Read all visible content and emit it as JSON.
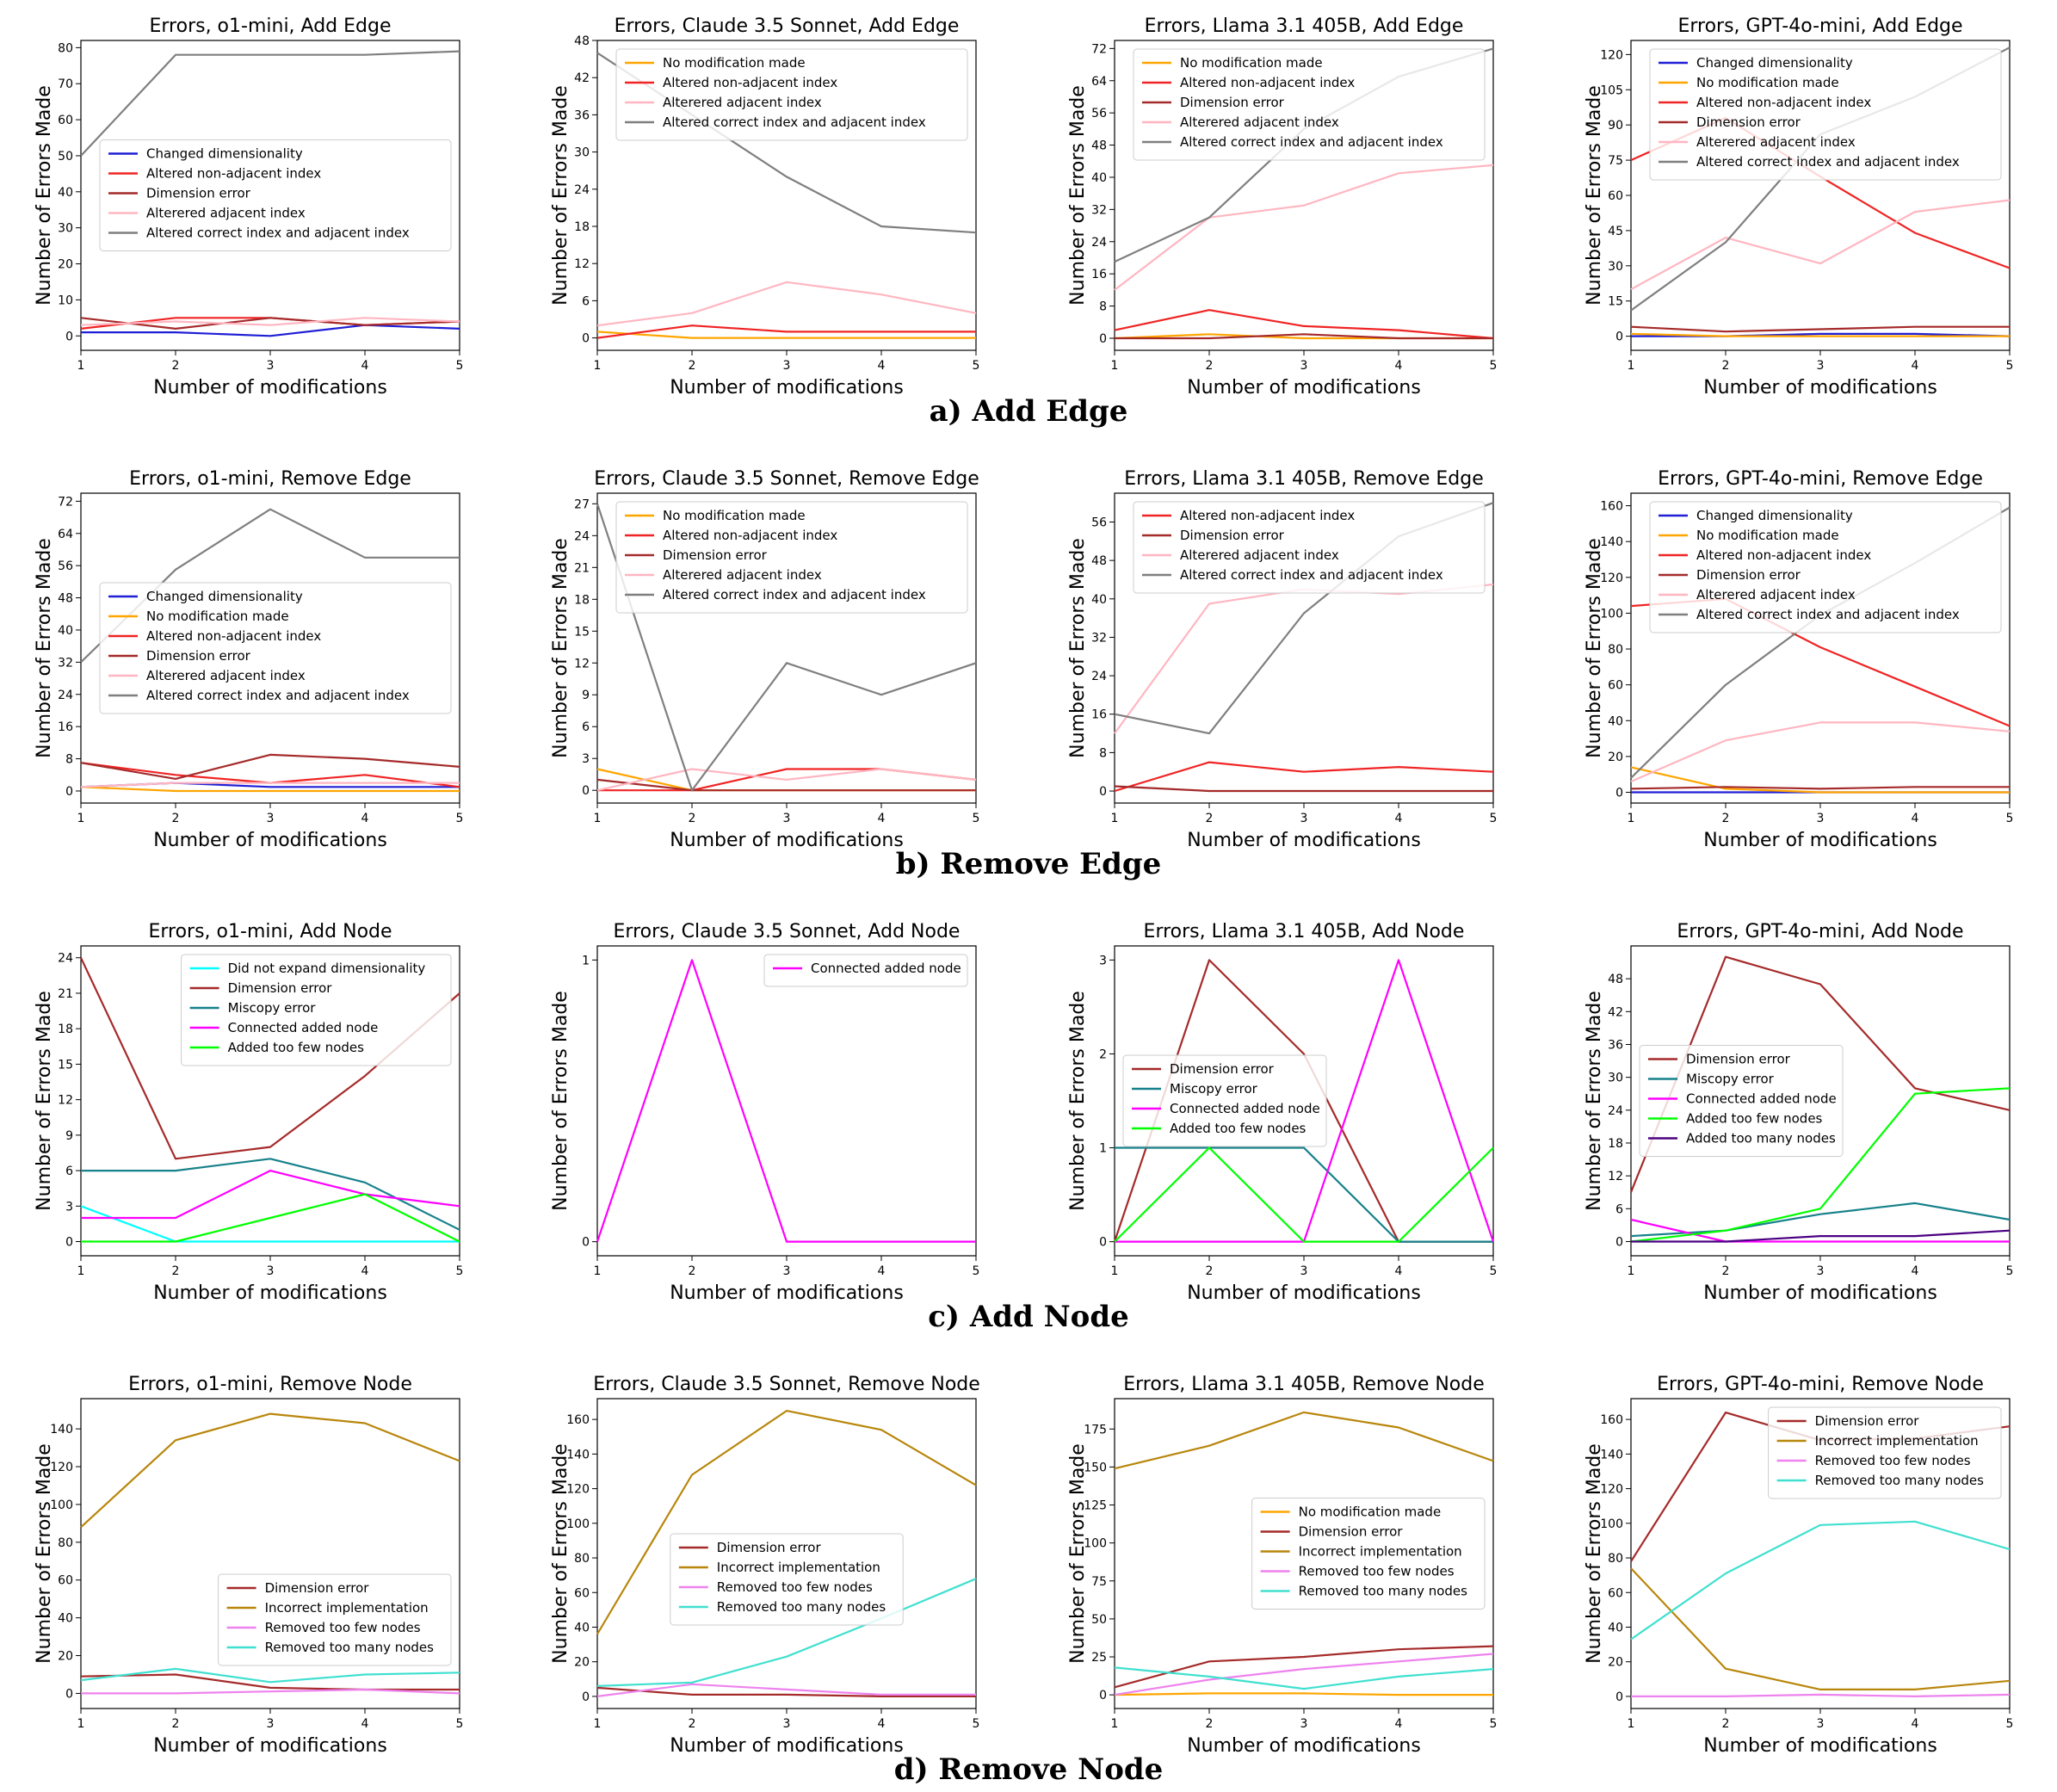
{
  "colors": {
    "Changed dimensionality": "#1f1fd6",
    "No modification made": "#ffa500",
    "Altered non-adjacent index": "#f02424",
    "Dimension error": "#a52a2a",
    "Alterered adjacent index": "#ffb6c1",
    "Altered correct index and adjacent index": "#7f7f7f",
    "Did not expand dimensionality": "#00ffff",
    "Miscopy error": "#16818a",
    "Connected added node": "#ff00ff",
    "Added too few nodes": "#00ff00",
    "Added too many nodes": "#4b0082",
    "Incorrect implementation": "#b8860b",
    "Removed too few nodes": "#ee82ee",
    "Removed too many nodes": "#40e0d0"
  },
  "xlabel": "Number of modifications",
  "ylabel": "Number of Errors Made",
  "captions": [
    "a) Add Edge",
    "b) Remove Edge",
    "c) Add Node",
    "d) Remove Node"
  ],
  "chart_data": [
    {
      "type": "line",
      "title": "Errors, o1-mini, Add Edge",
      "x": [
        1,
        2,
        3,
        4,
        5
      ],
      "ylim": [
        -4,
        82
      ],
      "yticks": [
        0,
        10,
        20,
        30,
        40,
        50,
        60,
        70,
        80
      ],
      "legend": "center-right",
      "series": [
        {
          "name": "Changed dimensionality",
          "values": [
            1,
            1,
            0,
            3,
            2
          ]
        },
        {
          "name": "Altered non-adjacent index",
          "values": [
            2,
            5,
            5,
            3,
            4
          ]
        },
        {
          "name": "Dimension error",
          "values": [
            5,
            2,
            5,
            3,
            4
          ]
        },
        {
          "name": "Alterered adjacent index",
          "values": [
            3,
            4,
            3,
            5,
            4
          ]
        },
        {
          "name": "Altered correct index and adjacent index",
          "values": [
            50,
            78,
            78,
            78,
            79
          ]
        }
      ]
    },
    {
      "type": "line",
      "title": "Errors, Claude 3.5 Sonnet, Add Edge",
      "x": [
        1,
        2,
        3,
        4,
        5
      ],
      "ylim": [
        -2,
        48
      ],
      "yticks": [
        0,
        6,
        12,
        18,
        24,
        30,
        36,
        42,
        48
      ],
      "legend": "top-right",
      "series": [
        {
          "name": "No modification made",
          "values": [
            1,
            0,
            0,
            0,
            0
          ]
        },
        {
          "name": "Altered non-adjacent index",
          "values": [
            0,
            2,
            1,
            1,
            1
          ]
        },
        {
          "name": "Alterered adjacent index",
          "values": [
            2,
            4,
            9,
            7,
            4
          ]
        },
        {
          "name": "Altered correct index and adjacent index",
          "values": [
            46,
            36,
            26,
            18,
            17
          ]
        }
      ]
    },
    {
      "type": "line",
      "title": "Errors, Llama 3.1 405B, Add Edge",
      "x": [
        1,
        2,
        3,
        4,
        5
      ],
      "ylim": [
        -3,
        74
      ],
      "yticks": [
        0,
        8,
        16,
        24,
        32,
        40,
        48,
        56,
        64,
        72
      ],
      "legend": "top-right",
      "series": [
        {
          "name": "No modification made",
          "values": [
            0,
            1,
            0,
            0,
            0
          ]
        },
        {
          "name": "Altered non-adjacent index",
          "values": [
            2,
            7,
            3,
            2,
            0
          ]
        },
        {
          "name": "Dimension error",
          "values": [
            0,
            0,
            1,
            0,
            0
          ]
        },
        {
          "name": "Alterered adjacent index",
          "values": [
            12,
            30,
            33,
            41,
            43
          ]
        },
        {
          "name": "Altered correct index and adjacent index",
          "values": [
            19,
            30,
            52,
            65,
            72
          ]
        }
      ]
    },
    {
      "type": "line",
      "title": "Errors, GPT-4o-mini, Add Edge",
      "x": [
        1,
        2,
        3,
        4,
        5
      ],
      "ylim": [
        -6,
        126
      ],
      "yticks": [
        0,
        15,
        30,
        45,
        60,
        75,
        90,
        105,
        120
      ],
      "legend": "top-right",
      "series": [
        {
          "name": "Changed dimensionality",
          "values": [
            0,
            0,
            1,
            1,
            0
          ]
        },
        {
          "name": "No modification made",
          "values": [
            1,
            0,
            0,
            0,
            0
          ]
        },
        {
          "name": "Altered non-adjacent index",
          "values": [
            75,
            93,
            68,
            44,
            29
          ]
        },
        {
          "name": "Dimension error",
          "values": [
            4,
            2,
            3,
            4,
            4
          ]
        },
        {
          "name": "Alterered adjacent index",
          "values": [
            20,
            42,
            31,
            53,
            58
          ]
        },
        {
          "name": "Altered correct index and adjacent index",
          "values": [
            11,
            40,
            86,
            102,
            123
          ]
        }
      ]
    },
    {
      "type": "line",
      "title": "Errors, o1-mini, Remove Edge",
      "x": [
        1,
        2,
        3,
        4,
        5
      ],
      "ylim": [
        -3,
        74
      ],
      "yticks": [
        0,
        8,
        16,
        24,
        32,
        40,
        48,
        56,
        64,
        72
      ],
      "legend": "center-right",
      "series": [
        {
          "name": "Changed dimensionality",
          "values": [
            1,
            2,
            1,
            1,
            1
          ]
        },
        {
          "name": "No modification made",
          "values": [
            1,
            0,
            0,
            0,
            0
          ]
        },
        {
          "name": "Altered non-adjacent index",
          "values": [
            7,
            4,
            2,
            4,
            1
          ]
        },
        {
          "name": "Dimension error",
          "values": [
            7,
            3,
            9,
            8,
            6
          ]
        },
        {
          "name": "Alterered adjacent index",
          "values": [
            1,
            2,
            2,
            2,
            2
          ]
        },
        {
          "name": "Altered correct index and adjacent index",
          "values": [
            32,
            55,
            70,
            58,
            58
          ]
        }
      ]
    },
    {
      "type": "line",
      "title": "Errors, Claude 3.5 Sonnet, Remove Edge",
      "x": [
        1,
        2,
        3,
        4,
        5
      ],
      "ylim": [
        -1.2,
        28
      ],
      "yticks": [
        0,
        3,
        6,
        9,
        12,
        15,
        18,
        21,
        24,
        27
      ],
      "legend": "top-right",
      "series": [
        {
          "name": "No modification made",
          "values": [
            2,
            0,
            0,
            0,
            0
          ]
        },
        {
          "name": "Altered non-adjacent index",
          "values": [
            0,
            0,
            2,
            2,
            1
          ]
        },
        {
          "name": "Dimension error",
          "values": [
            1,
            0,
            0,
            0,
            0
          ]
        },
        {
          "name": "Alterered adjacent index",
          "values": [
            0,
            2,
            1,
            2,
            1
          ]
        },
        {
          "name": "Altered correct index and adjacent index",
          "values": [
            27,
            0,
            12,
            9,
            12
          ]
        }
      ]
    },
    {
      "type": "line",
      "title": "Errors, Llama 3.1 405B, Remove Edge",
      "x": [
        1,
        2,
        3,
        4,
        5
      ],
      "ylim": [
        -2.5,
        62
      ],
      "yticks": [
        0,
        8,
        16,
        24,
        32,
        40,
        48,
        56
      ],
      "legend": "top-right",
      "series": [
        {
          "name": "Altered non-adjacent index",
          "values": [
            0,
            6,
            4,
            5,
            4
          ]
        },
        {
          "name": "Dimension error",
          "values": [
            1,
            0,
            0,
            0,
            0
          ]
        },
        {
          "name": "Alterered adjacent index",
          "values": [
            12,
            39,
            42,
            41,
            43
          ]
        },
        {
          "name": "Altered correct index and adjacent index",
          "values": [
            16,
            12,
            37,
            53,
            60
          ]
        }
      ]
    },
    {
      "type": "line",
      "title": "Errors, GPT-4o-mini, Remove Edge",
      "x": [
        1,
        2,
        3,
        4,
        5
      ],
      "ylim": [
        -6,
        167
      ],
      "yticks": [
        0,
        20,
        40,
        60,
        80,
        100,
        120,
        140,
        160
      ],
      "legend": "top-right",
      "series": [
        {
          "name": "Changed dimensionality",
          "values": [
            0,
            0,
            0,
            0,
            0
          ]
        },
        {
          "name": "No modification made",
          "values": [
            14,
            2,
            0,
            0,
            0
          ]
        },
        {
          "name": "Altered non-adjacent index",
          "values": [
            104,
            108,
            81,
            59,
            37
          ]
        },
        {
          "name": "Dimension error",
          "values": [
            2,
            3,
            2,
            3,
            3
          ]
        },
        {
          "name": "Alterered adjacent index",
          "values": [
            6,
            29,
            39,
            39,
            34
          ]
        },
        {
          "name": "Altered correct index and adjacent index",
          "values": [
            8,
            60,
            99,
            128,
            159
          ]
        }
      ]
    },
    {
      "type": "line",
      "title": "Errors, o1-mini, Add Node",
      "x": [
        1,
        2,
        3,
        4,
        5
      ],
      "ylim": [
        -1.2,
        25
      ],
      "yticks": [
        0,
        3,
        6,
        9,
        12,
        15,
        18,
        21,
        24
      ],
      "legend": "top-right",
      "series": [
        {
          "name": "Did not expand dimensionality",
          "values": [
            3,
            0,
            0,
            0,
            0
          ]
        },
        {
          "name": "Dimension error",
          "values": [
            24,
            7,
            8,
            14,
            21
          ]
        },
        {
          "name": "Miscopy error",
          "values": [
            6,
            6,
            7,
            5,
            1
          ]
        },
        {
          "name": "Connected added node",
          "values": [
            2,
            2,
            6,
            4,
            3
          ]
        },
        {
          "name": "Added too few nodes",
          "values": [
            0,
            0,
            2,
            4,
            0
          ]
        }
      ]
    },
    {
      "type": "line",
      "title": "Errors, Claude 3.5 Sonnet, Add Node",
      "x": [
        1,
        2,
        3,
        4,
        5
      ],
      "ylim": [
        -0.05,
        1.05
      ],
      "yticks": [
        0,
        1
      ],
      "legend": "top-right",
      "series": [
        {
          "name": "Connected added node",
          "values": [
            0,
            1,
            0,
            0,
            0
          ]
        }
      ]
    },
    {
      "type": "line",
      "title": "Errors, Llama 3.1 405B, Add Node",
      "x": [
        1,
        2,
        3,
        4,
        5
      ],
      "ylim": [
        -0.15,
        3.15
      ],
      "yticks": [
        0,
        1,
        2,
        3
      ],
      "legend": "center-left",
      "series": [
        {
          "name": "Dimension error",
          "values": [
            0,
            3,
            2,
            0,
            0
          ]
        },
        {
          "name": "Miscopy error",
          "values": [
            1,
            1,
            1,
            0,
            0
          ]
        },
        {
          "name": "Connected added node",
          "values": [
            0,
            0,
            0,
            3,
            0
          ]
        },
        {
          "name": "Added too few nodes",
          "values": [
            0,
            1,
            0,
            0,
            1
          ]
        }
      ]
    },
    {
      "type": "line",
      "title": "Errors, GPT-4o-mini, Add Node",
      "x": [
        1,
        2,
        3,
        4,
        5
      ],
      "ylim": [
        -2.6,
        54
      ],
      "yticks": [
        0,
        6,
        12,
        18,
        24,
        30,
        36,
        42,
        48
      ],
      "legend": "center-left",
      "series": [
        {
          "name": "Dimension error",
          "values": [
            9,
            52,
            47,
            28,
            24
          ]
        },
        {
          "name": "Miscopy error",
          "values": [
            1,
            2,
            5,
            7,
            4
          ]
        },
        {
          "name": "Connected added node",
          "values": [
            4,
            0,
            0,
            0,
            0
          ]
        },
        {
          "name": "Added too few nodes",
          "values": [
            0,
            2,
            6,
            27,
            28
          ]
        },
        {
          "name": "Added too many nodes",
          "values": [
            0,
            0,
            1,
            1,
            2
          ]
        }
      ]
    },
    {
      "type": "line",
      "title": "Errors, o1-mini, Remove Node",
      "x": [
        1,
        2,
        3,
        4,
        5
      ],
      "ylim": [
        -8,
        156
      ],
      "yticks": [
        0,
        20,
        40,
        60,
        80,
        100,
        120,
        140
      ],
      "legend": "lower-right",
      "series": [
        {
          "name": "Dimension error",
          "values": [
            9,
            10,
            3,
            2,
            2
          ]
        },
        {
          "name": "Incorrect implementation",
          "values": [
            88,
            134,
            148,
            143,
            123
          ]
        },
        {
          "name": "Removed too few nodes",
          "values": [
            0,
            0,
            1,
            2,
            0
          ]
        },
        {
          "name": "Removed too many nodes",
          "values": [
            7,
            13,
            6,
            10,
            11
          ]
        }
      ]
    },
    {
      "type": "line",
      "title": "Errors, Claude 3.5 Sonnet, Remove Node",
      "x": [
        1,
        2,
        3,
        4,
        5
      ],
      "ylim": [
        -7,
        172
      ],
      "yticks": [
        0,
        20,
        40,
        60,
        80,
        100,
        120,
        140,
        160
      ],
      "legend": "center",
      "series": [
        {
          "name": "Dimension error",
          "values": [
            5,
            1,
            1,
            0,
            0
          ]
        },
        {
          "name": "Incorrect implementation",
          "values": [
            36,
            128,
            165,
            154,
            122
          ]
        },
        {
          "name": "Removed too few nodes",
          "values": [
            0,
            7,
            4,
            1,
            1
          ]
        },
        {
          "name": "Removed too many nodes",
          "values": [
            6,
            8,
            23,
            45,
            68
          ]
        }
      ]
    },
    {
      "type": "line",
      "title": "Errors, Llama 3.1 405B, Remove Node",
      "x": [
        1,
        2,
        3,
        4,
        5
      ],
      "ylim": [
        -9,
        195
      ],
      "yticks": [
        0,
        25,
        50,
        75,
        100,
        125,
        150,
        175
      ],
      "legend": "center-right",
      "series": [
        {
          "name": "No modification made",
          "values": [
            0,
            1,
            1,
            0,
            0
          ]
        },
        {
          "name": "Dimension error",
          "values": [
            5,
            22,
            25,
            30,
            32
          ]
        },
        {
          "name": "Incorrect implementation",
          "values": [
            149,
            164,
            186,
            176,
            154
          ]
        },
        {
          "name": "Removed too few nodes",
          "values": [
            0,
            10,
            17,
            22,
            27
          ]
        },
        {
          "name": "Removed too many nodes",
          "values": [
            18,
            12,
            4,
            12,
            17
          ]
        }
      ]
    },
    {
      "type": "line",
      "title": "Errors, GPT-4o-mini, Remove Node",
      "x": [
        1,
        2,
        3,
        4,
        5
      ],
      "ylim": [
        -7,
        172
      ],
      "yticks": [
        0,
        20,
        40,
        60,
        80,
        100,
        120,
        140,
        160
      ],
      "legend": "top-right",
      "series": [
        {
          "name": "Dimension error",
          "values": [
            78,
            164,
            148,
            149,
            156
          ]
        },
        {
          "name": "Incorrect implementation",
          "values": [
            74,
            16,
            4,
            4,
            9
          ]
        },
        {
          "name": "Removed too few nodes",
          "values": [
            0,
            0,
            1,
            0,
            1
          ]
        },
        {
          "name": "Removed too many nodes",
          "values": [
            33,
            71,
            99,
            101,
            85
          ]
        }
      ]
    }
  ]
}
